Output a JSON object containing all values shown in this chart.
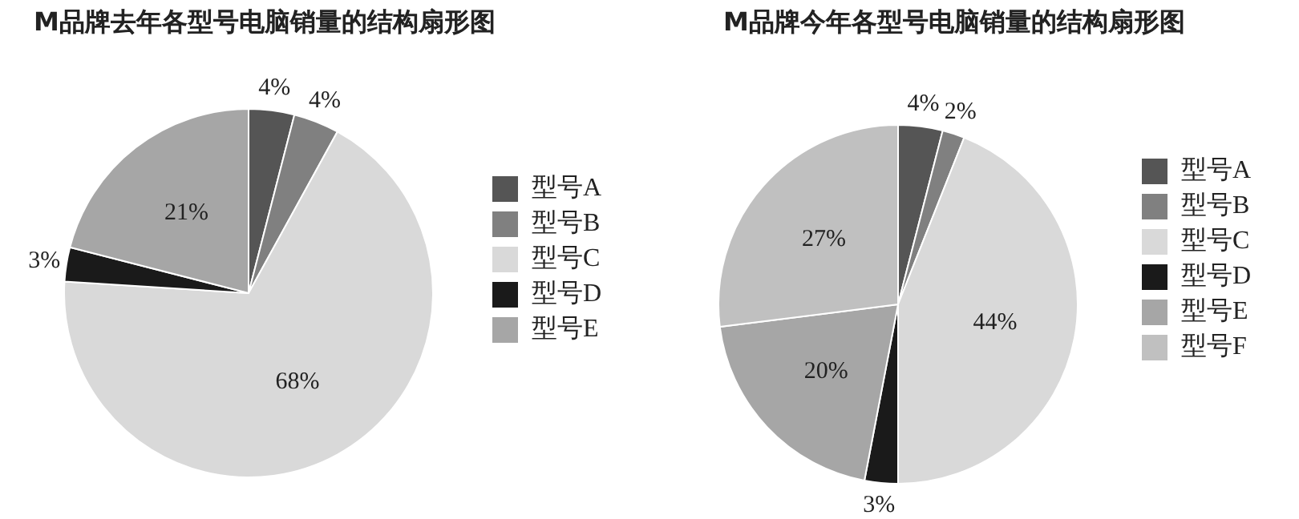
{
  "chart_data": [
    {
      "type": "pie",
      "title": "M品牌去年各型号电脑销量的结构扇形图",
      "categories": [
        "型号A",
        "型号B",
        "型号C",
        "型号D",
        "型号E"
      ],
      "values": [
        4,
        4,
        68,
        3,
        21
      ],
      "value_labels": [
        "4%",
        "4%",
        "68%",
        "3%",
        "21%"
      ],
      "colors": [
        "#555555",
        "#808080",
        "#d9d9d9",
        "#1a1a1a",
        "#a6a6a6"
      ],
      "legend": "right"
    },
    {
      "type": "pie",
      "title": "M品牌今年各型号电脑销量的结构扇形图",
      "categories": [
        "型号A",
        "型号B",
        "型号C",
        "型号D",
        "型号E",
        "型号F"
      ],
      "values": [
        4,
        2,
        44,
        3,
        20,
        27
      ],
      "value_labels": [
        "4%",
        "2%",
        "44%",
        "3%",
        "20%",
        "27%"
      ],
      "colors": [
        "#555555",
        "#808080",
        "#d9d9d9",
        "#1a1a1a",
        "#a6a6a6",
        "#c0c0c0"
      ],
      "legend": "right"
    }
  ]
}
